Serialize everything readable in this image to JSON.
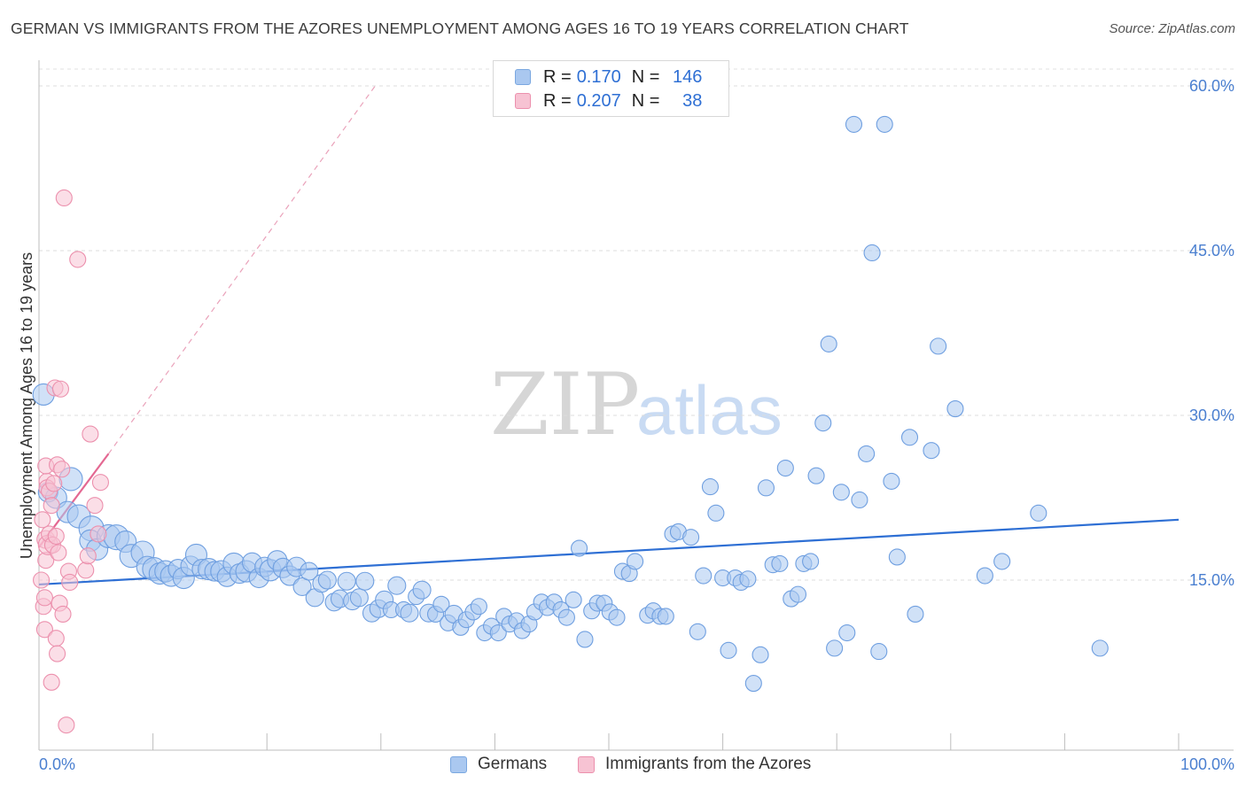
{
  "title": "GERMAN VS IMMIGRANTS FROM THE AZORES UNEMPLOYMENT AMONG AGES 16 TO 19 YEARS CORRELATION CHART",
  "source": "Source: ZipAtlas.com",
  "watermark": {
    "zip": "ZIP",
    "atlas": "atlas"
  },
  "legend": {
    "rows": [
      {
        "r_label": "R =",
        "r_value": "0.170",
        "n_label": "N =",
        "n_value": "146",
        "color": "#aac8f0",
        "border": "#7aa7e0"
      },
      {
        "r_label": "R =",
        "r_value": "0.207",
        "n_label": "N =",
        "n_value": "38",
        "color": "#f7c3d3",
        "border": "#ec90ad"
      }
    ]
  },
  "bottom_legend": [
    {
      "label": "Germans",
      "color": "#aac8f0",
      "border": "#7aa7e0"
    },
    {
      "label": "Immigrants from the Azores",
      "color": "#f7c3d3",
      "border": "#ec90ad"
    }
  ],
  "chart_data": {
    "type": "scatter",
    "title": "GERMAN VS IMMIGRANTS FROM THE AZORES UNEMPLOYMENT AMONG AGES 16 TO 19 YEARS CORRELATION CHART",
    "xlabel": "",
    "ylabel": "Unemployment Among Ages 16 to 19 years",
    "xlim": [
      0,
      100
    ],
    "ylim": [
      0,
      62
    ],
    "x_tick_labels": [
      "0.0%",
      "100.0%"
    ],
    "y_ticks": [
      15,
      30,
      45,
      60
    ],
    "y_tick_labels": [
      "15.0%",
      "30.0%",
      "45.0%",
      "60.0%"
    ],
    "series": [
      {
        "name": "Germans",
        "color": "#aac8f0",
        "stroke": "#6f9fe0",
        "trend": {
          "x0": 0,
          "y0": 14.6,
          "x1": 100,
          "y1": 20.5,
          "color": "#2e6fd4"
        },
        "points": [
          [
            0.4,
            31.9,
            12
          ],
          [
            0.8,
            23.0,
            11
          ],
          [
            1.5,
            22.5,
            12
          ],
          [
            2.8,
            24.2,
            13
          ],
          [
            2.5,
            21.2,
            12
          ],
          [
            3.5,
            20.8,
            13
          ],
          [
            4.6,
            19.7,
            14
          ],
          [
            4.5,
            18.6,
            12
          ],
          [
            5.1,
            17.8,
            12
          ],
          [
            6.1,
            19.0,
            13
          ],
          [
            6.8,
            18.9,
            14
          ],
          [
            7.6,
            18.5,
            12
          ],
          [
            8.1,
            17.2,
            13
          ],
          [
            9.1,
            17.5,
            13
          ],
          [
            9.5,
            16.2,
            12
          ],
          [
            10.1,
            16.0,
            13
          ],
          [
            10.6,
            15.6,
            12
          ],
          [
            11.1,
            15.8,
            12
          ],
          [
            11.6,
            15.4,
            12
          ],
          [
            12.2,
            16.0,
            11
          ],
          [
            12.7,
            15.2,
            12
          ],
          [
            13.3,
            16.3,
            11
          ],
          [
            13.8,
            17.3,
            12
          ],
          [
            14.3,
            16.0,
            11
          ],
          [
            14.9,
            16.0,
            12
          ],
          [
            15.4,
            15.8,
            11
          ],
          [
            16.0,
            15.8,
            12
          ],
          [
            16.5,
            15.3,
            11
          ],
          [
            17.1,
            16.5,
            12
          ],
          [
            17.6,
            15.6,
            11
          ],
          [
            18.2,
            15.8,
            12
          ],
          [
            18.7,
            16.6,
            11
          ],
          [
            19.3,
            15.2,
            11
          ],
          [
            19.8,
            16.2,
            11
          ],
          [
            20.3,
            15.9,
            12
          ],
          [
            20.9,
            16.8,
            11
          ],
          [
            21.4,
            16.1,
            11
          ],
          [
            22.0,
            15.4,
            11
          ],
          [
            22.6,
            16.2,
            11
          ],
          [
            23.1,
            14.4,
            10
          ],
          [
            23.7,
            15.8,
            10
          ],
          [
            24.2,
            13.4,
            10
          ],
          [
            24.8,
            14.7,
            10
          ],
          [
            25.3,
            15.0,
            10
          ],
          [
            25.9,
            13.0,
            10
          ],
          [
            26.4,
            13.3,
            10
          ],
          [
            27.0,
            14.9,
            10
          ],
          [
            27.5,
            13.1,
            10
          ],
          [
            28.1,
            13.4,
            10
          ],
          [
            28.6,
            14.9,
            10
          ],
          [
            29.2,
            12.0,
            10
          ],
          [
            29.8,
            12.4,
            10
          ],
          [
            30.3,
            13.2,
            10
          ],
          [
            30.9,
            12.3,
            9
          ],
          [
            31.4,
            14.5,
            10
          ],
          [
            32.0,
            12.3,
            9
          ],
          [
            32.5,
            12.0,
            10
          ],
          [
            33.1,
            13.5,
            9
          ],
          [
            33.6,
            14.1,
            10
          ],
          [
            34.2,
            12.0,
            10
          ],
          [
            34.8,
            11.9,
            9
          ],
          [
            35.3,
            12.8,
            9
          ],
          [
            35.9,
            11.1,
            9
          ],
          [
            36.4,
            11.9,
            10
          ],
          [
            37.0,
            10.7,
            9
          ],
          [
            37.5,
            11.4,
            9
          ],
          [
            38.1,
            12.1,
            9
          ],
          [
            38.6,
            12.6,
            9
          ],
          [
            39.1,
            10.2,
            9
          ],
          [
            39.7,
            10.8,
            9
          ],
          [
            40.3,
            10.2,
            9
          ],
          [
            40.8,
            11.7,
            9
          ],
          [
            41.3,
            11.0,
            9
          ],
          [
            41.9,
            11.3,
            9
          ],
          [
            42.4,
            10.4,
            9
          ],
          [
            43.0,
            11.0,
            9
          ],
          [
            43.5,
            12.1,
            9
          ],
          [
            44.1,
            13.0,
            9
          ],
          [
            44.6,
            12.5,
            9
          ],
          [
            45.2,
            13.0,
            9
          ],
          [
            45.8,
            12.3,
            9
          ],
          [
            46.3,
            11.6,
            9
          ],
          [
            46.9,
            13.2,
            9
          ],
          [
            47.4,
            17.9,
            9
          ],
          [
            47.9,
            9.6,
            9
          ],
          [
            48.5,
            12.2,
            9
          ],
          [
            49.0,
            12.9,
            9
          ],
          [
            49.6,
            12.9,
            9
          ],
          [
            50.1,
            12.1,
            9
          ],
          [
            50.7,
            11.6,
            9
          ],
          [
            51.2,
            15.8,
            9
          ],
          [
            51.8,
            15.6,
            9
          ],
          [
            52.3,
            16.7,
            9
          ],
          [
            53.4,
            11.8,
            9
          ],
          [
            53.9,
            12.2,
            9
          ],
          [
            54.5,
            11.7,
            9
          ],
          [
            55.0,
            11.7,
            9
          ],
          [
            55.6,
            19.2,
            9
          ],
          [
            56.1,
            19.4,
            9
          ],
          [
            57.2,
            18.9,
            9
          ],
          [
            57.8,
            10.3,
            9
          ],
          [
            58.3,
            15.4,
            9
          ],
          [
            58.9,
            23.5,
            9
          ],
          [
            59.4,
            21.1,
            9
          ],
          [
            60.0,
            15.2,
            9
          ],
          [
            60.5,
            8.6,
            9
          ],
          [
            61.1,
            15.2,
            9
          ],
          [
            61.6,
            14.8,
            9
          ],
          [
            62.2,
            15.1,
            9
          ],
          [
            62.7,
            5.6,
            9
          ],
          [
            63.3,
            8.2,
            9
          ],
          [
            63.8,
            23.4,
            9
          ],
          [
            64.4,
            16.4,
            9
          ],
          [
            65.0,
            16.5,
            9
          ],
          [
            65.5,
            25.2,
            9
          ],
          [
            66.0,
            13.3,
            9
          ],
          [
            66.6,
            13.7,
            9
          ],
          [
            67.1,
            16.5,
            9
          ],
          [
            67.7,
            16.7,
            9
          ],
          [
            68.2,
            24.5,
            9
          ],
          [
            68.8,
            29.3,
            9
          ],
          [
            69.3,
            36.5,
            9
          ],
          [
            69.8,
            8.8,
            9
          ],
          [
            70.4,
            23.0,
            9
          ],
          [
            70.9,
            10.2,
            9
          ],
          [
            71.5,
            56.5,
            9
          ],
          [
            72.0,
            22.3,
            9
          ],
          [
            72.6,
            26.5,
            9
          ],
          [
            73.1,
            44.8,
            9
          ],
          [
            73.7,
            8.5,
            9
          ],
          [
            74.2,
            56.5,
            9
          ],
          [
            74.8,
            24.0,
            9
          ],
          [
            75.3,
            17.1,
            9
          ],
          [
            76.4,
            28.0,
            9
          ],
          [
            76.9,
            11.9,
            9
          ],
          [
            78.3,
            26.8,
            9
          ],
          [
            78.9,
            36.3,
            9
          ],
          [
            80.4,
            30.6,
            9
          ],
          [
            83.0,
            15.4,
            9
          ],
          [
            84.5,
            16.7,
            9
          ],
          [
            87.7,
            21.1,
            9
          ],
          [
            93.1,
            8.8,
            9
          ]
        ]
      },
      {
        "name": "Immigrants from the Azores",
        "color": "#f7c3d3",
        "stroke": "#ec90ad",
        "trend": {
          "x0": 0,
          "y0": 18.0,
          "x1": 6.1,
          "y1": 26.5,
          "color": "#e46892"
        },
        "trend_ext": {
          "x0": 6.1,
          "y0": 26.5,
          "x1": 29.5,
          "y1": 60.0,
          "color": "#eaa2ba"
        },
        "points": [
          [
            0.2,
            15.0,
            9
          ],
          [
            0.4,
            12.6,
            9
          ],
          [
            0.5,
            13.4,
            9
          ],
          [
            0.5,
            10.5,
            9
          ],
          [
            0.6,
            16.8,
            9
          ],
          [
            0.6,
            18.7,
            10
          ],
          [
            0.7,
            24.0,
            9
          ],
          [
            0.6,
            25.4,
            9
          ],
          [
            0.7,
            23.4,
            9
          ],
          [
            0.8,
            18.2,
            11
          ],
          [
            0.9,
            23.1,
            9
          ],
          [
            0.9,
            19.2,
            9
          ],
          [
            1.1,
            21.8,
            9
          ],
          [
            1.1,
            5.7,
            9
          ],
          [
            1.2,
            18.2,
            9
          ],
          [
            1.4,
            32.5,
            9
          ],
          [
            1.5,
            9.7,
            9
          ],
          [
            1.5,
            19.0,
            9
          ],
          [
            1.6,
            8.3,
            9
          ],
          [
            1.6,
            25.5,
            9
          ],
          [
            1.7,
            17.5,
            9
          ],
          [
            1.8,
            12.9,
            9
          ],
          [
            1.9,
            32.4,
            9
          ],
          [
            2.0,
            25.1,
            9
          ],
          [
            2.1,
            11.9,
            9
          ],
          [
            2.2,
            49.8,
            9
          ],
          [
            2.4,
            1.8,
            9
          ],
          [
            2.6,
            15.8,
            9
          ],
          [
            2.7,
            14.8,
            9
          ],
          [
            3.4,
            44.2,
            9
          ],
          [
            4.1,
            15.9,
            9
          ],
          [
            4.3,
            17.2,
            9
          ],
          [
            4.5,
            28.3,
            9
          ],
          [
            4.9,
            21.8,
            9
          ],
          [
            5.4,
            23.9,
            9
          ],
          [
            5.2,
            19.2,
            9
          ],
          [
            0.3,
            20.5,
            9
          ],
          [
            1.3,
            23.8,
            9
          ]
        ]
      }
    ]
  }
}
